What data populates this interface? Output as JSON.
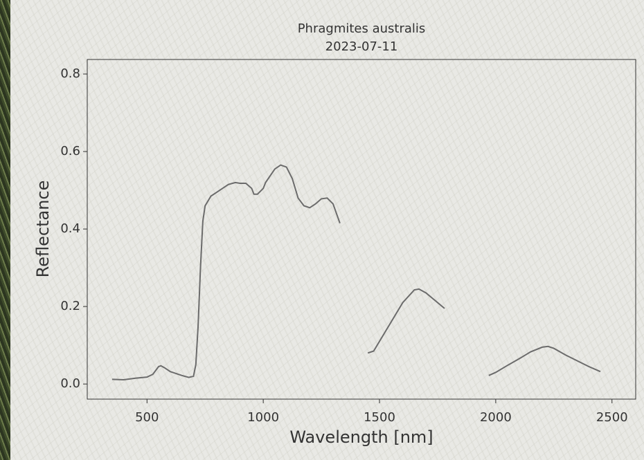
{
  "chart_data": {
    "type": "line",
    "title": "Phragmites australis",
    "subtitle": "2023-07-11",
    "x_label": "Wavelength [nm]",
    "y_label": "Reflectance",
    "x": [
      350,
      400,
      450,
      500,
      525,
      550,
      560,
      575,
      600,
      650,
      680,
      700,
      710,
      720,
      730,
      740,
      750,
      775,
      800,
      850,
      880,
      900,
      925,
      950,
      960,
      975,
      1000,
      1010,
      1050,
      1075,
      1100,
      1125,
      1150,
      1175,
      1200,
      1225,
      1250,
      1275,
      1300,
      1330,
      1390,
      1450,
      1475,
      1500,
      1550,
      1600,
      1650,
      1670,
      1700,
      1750,
      1780,
      1875,
      1970,
      2000,
      2050,
      2100,
      2150,
      2200,
      2225,
      2250,
      2300,
      2350,
      2400,
      2450
    ],
    "series": [
      {
        "name": "Reflectance",
        "color": "#6b6b6b",
        "values": [
          0.012,
          0.011,
          0.015,
          0.018,
          0.025,
          0.045,
          0.047,
          0.042,
          0.032,
          0.022,
          0.017,
          0.02,
          0.05,
          0.15,
          0.3,
          0.42,
          0.46,
          0.485,
          0.495,
          0.515,
          0.52,
          0.518,
          0.518,
          0.505,
          0.49,
          0.49,
          0.505,
          0.52,
          0.555,
          0.565,
          0.56,
          0.53,
          0.48,
          0.46,
          0.455,
          0.465,
          0.478,
          0.48,
          0.465,
          0.415,
          null,
          0.08,
          0.085,
          0.11,
          0.16,
          0.21,
          0.243,
          0.245,
          0.235,
          0.21,
          0.195,
          null,
          0.022,
          0.03,
          0.048,
          0.065,
          0.083,
          0.095,
          0.097,
          0.092,
          0.075,
          0.06,
          0.045,
          0.032
        ]
      }
    ],
    "xlim": [
      243,
      2602
    ],
    "ylim": [
      -0.039,
      0.8375
    ],
    "xticks": [
      500,
      1000,
      1500,
      2000,
      2500
    ],
    "yticks": [
      {
        "value": 0,
        "label": "0.0"
      },
      0.2,
      0.4,
      0.6,
      0.8
    ]
  }
}
